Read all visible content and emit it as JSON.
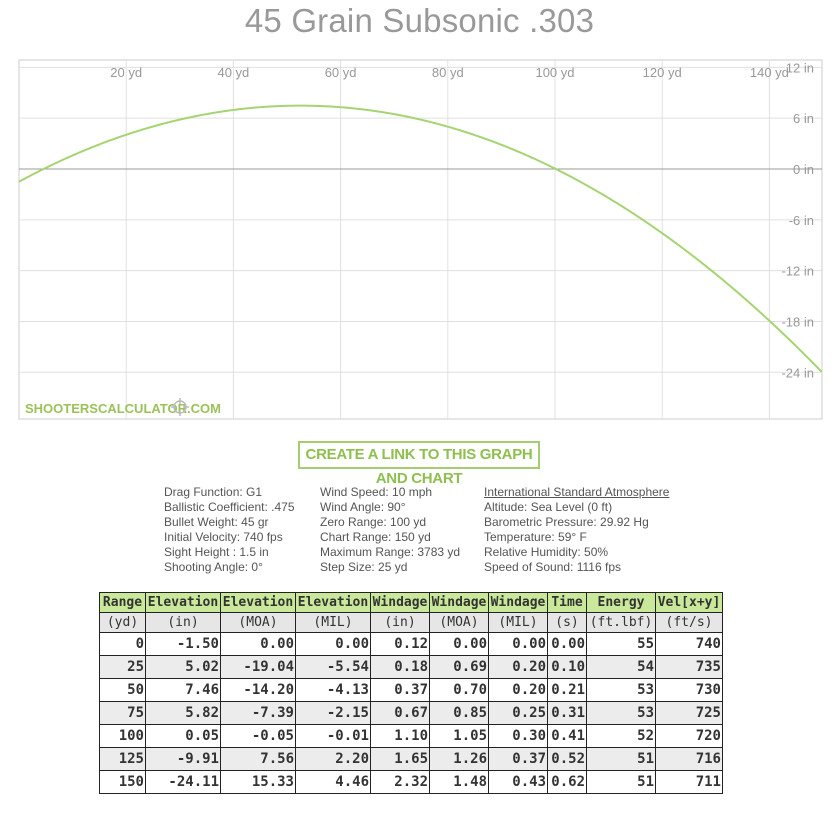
{
  "chart_data": {
    "type": "line",
    "title": "45 Grain Subsonic .303",
    "x_unit": "yd",
    "y_unit": "in",
    "xlim": [
      0,
      150
    ],
    "ylim": [
      -27,
      12
    ],
    "x_ticks": [
      {
        "value": 20,
        "label": "20 yd"
      },
      {
        "value": 40,
        "label": "40 yd"
      },
      {
        "value": 60,
        "label": "60 yd"
      },
      {
        "value": 80,
        "label": "80 yd"
      },
      {
        "value": 100,
        "label": "100 yd"
      },
      {
        "value": 120,
        "label": "120 yd"
      },
      {
        "value": 140,
        "label": "140 yd"
      }
    ],
    "y_ticks": [
      {
        "value": 12,
        "label": "12 in"
      },
      {
        "value": 6,
        "label": "6 in"
      },
      {
        "value": 0,
        "label": "0 in"
      },
      {
        "value": -6,
        "label": "-6 in"
      },
      {
        "value": -12,
        "label": "-12 in"
      },
      {
        "value": -18,
        "label": "-18 in"
      },
      {
        "value": -24,
        "label": "-24 in"
      }
    ],
    "grid": true,
    "series": [
      {
        "color": "#a6d472",
        "x": [
          0,
          25,
          50,
          75,
          100,
          125,
          150
        ],
        "y": [
          -1.5,
          5.02,
          7.46,
          5.82,
          0.05,
          -9.91,
          -24.11
        ]
      }
    ]
  },
  "watermark": "SHOOTERSCALCULATOR.COM",
  "link_button": "CREATE A LINK TO THIS GRAPH AND CHART",
  "info": {
    "col1": [
      "Drag Function: G1",
      "Ballistic Coefficient: .475",
      "Bullet Weight: 45 gr",
      "Initial Velocity: 740 fps",
      "Sight Height : 1.5 in",
      "Shooting Angle: 0°"
    ],
    "col2": [
      "Wind Speed: 10 mph",
      "Wind Angle: 90°",
      "Zero Range: 100 yd",
      "Chart Range: 150 yd",
      "Maximum Range: 3783 yd",
      "Step Size: 25 yd"
    ],
    "col3_header": "International Standard Atmosphere",
    "col3": [
      "Altitude: Sea Level (0 ft)",
      "Barometric Pressure: 29.92 Hg",
      "Temperature: 59° F",
      "Relative Humidity: 50%",
      "Speed of Sound: 1116 fps"
    ]
  },
  "table": {
    "headers": [
      "Range",
      "Elevation",
      "Elevation",
      "Elevation",
      "Windage",
      "Windage",
      "Windage",
      "Time",
      "Energy",
      "Vel[x+y]"
    ],
    "units": [
      "(yd)",
      "(in)",
      "(MOA)",
      "(MIL)",
      "(in)",
      "(MOA)",
      "(MIL)",
      "(s)",
      "(ft.lbf)",
      "(ft/s)"
    ],
    "rows": [
      [
        "0",
        "-1.50",
        "0.00",
        "0.00",
        "0.12",
        "0.00",
        "0.00",
        "0.00",
        "55",
        "740"
      ],
      [
        "25",
        "5.02",
        "-19.04",
        "-5.54",
        "0.18",
        "0.69",
        "0.20",
        "0.10",
        "54",
        "735"
      ],
      [
        "50",
        "7.46",
        "-14.20",
        "-4.13",
        "0.37",
        "0.70",
        "0.20",
        "0.21",
        "53",
        "730"
      ],
      [
        "75",
        "5.82",
        "-7.39",
        "-2.15",
        "0.67",
        "0.85",
        "0.25",
        "0.31",
        "53",
        "725"
      ],
      [
        "100",
        "0.05",
        "-0.05",
        "-0.01",
        "1.10",
        "1.05",
        "0.30",
        "0.41",
        "52",
        "720"
      ],
      [
        "125",
        "-9.91",
        "7.56",
        "2.20",
        "1.65",
        "1.26",
        "0.37",
        "0.52",
        "51",
        "716"
      ],
      [
        "150",
        "-24.11",
        "15.33",
        "4.46",
        "2.32",
        "1.48",
        "0.43",
        "0.62",
        "51",
        "711"
      ]
    ]
  }
}
